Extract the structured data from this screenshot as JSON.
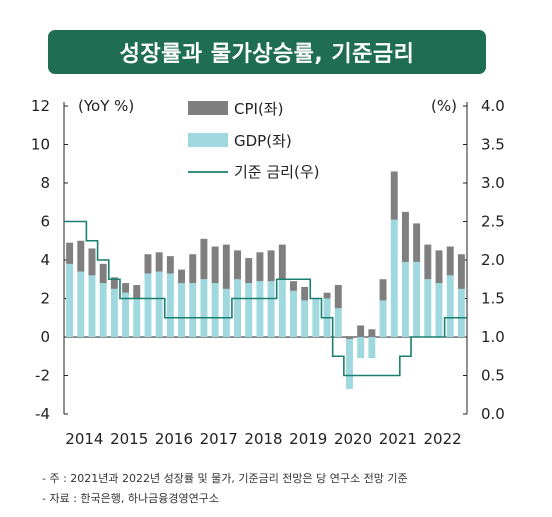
{
  "title": "성장률과 물가상승률, 기준금리",
  "notes": [
    "- 주 : 2021년과 2022년 성장률 및 물가, 기준금리 전망은 당 연구소 전망 기준",
    "- 자료 : 한국은행, 하나금융경영연구소"
  ],
  "colors": {
    "title_bg": "#1f6e54",
    "cpi": "#7f7f7f",
    "gdp": "#9fd8df",
    "rate": "#1a7f6e"
  },
  "chart_data": {
    "type": "bar",
    "left_unit": "(YoY %)",
    "right_unit": "(%)",
    "left_ylim": [
      -4,
      12
    ],
    "right_ylim": [
      0.0,
      4.0
    ],
    "left_ticks": [
      "-4",
      "-2",
      "0",
      "2",
      "4",
      "6",
      "8",
      "10",
      "12"
    ],
    "right_ticks": [
      "0.0",
      "0.5",
      "1.0",
      "1.5",
      "2.0",
      "2.5",
      "3.0",
      "3.5",
      "4.0"
    ],
    "x_labels": [
      "2014",
      "2015",
      "2016",
      "2017",
      "2018",
      "2019",
      "2020",
      "2021",
      "2022"
    ],
    "legend": [
      "CPI(좌)",
      "GDP(좌)",
      "기준 금리(우)"
    ],
    "quarters": [
      "2014Q1",
      "2014Q2",
      "2014Q3",
      "2014Q4",
      "2015Q1",
      "2015Q2",
      "2015Q3",
      "2015Q4",
      "2016Q1",
      "2016Q2",
      "2016Q3",
      "2016Q4",
      "2017Q1",
      "2017Q2",
      "2017Q3",
      "2017Q4",
      "2018Q1",
      "2018Q2",
      "2018Q3",
      "2018Q4",
      "2019Q1",
      "2019Q2",
      "2019Q3",
      "2019Q4",
      "2020Q1",
      "2020Q2",
      "2020Q3",
      "2020Q4",
      "2021Q1",
      "2021Q2",
      "2021Q3",
      "2021Q4",
      "2022Q1",
      "2022Q2",
      "2022Q3",
      "2022Q4"
    ],
    "series": [
      {
        "name": "GDP(좌)",
        "values": [
          3.8,
          3.4,
          3.2,
          2.8,
          2.5,
          2.3,
          2.0,
          3.3,
          3.4,
          3.3,
          2.8,
          2.8,
          3.0,
          2.8,
          2.5,
          3.0,
          2.8,
          2.9,
          2.9,
          3.0,
          2.4,
          1.9,
          2.0,
          2.0,
          1.5,
          -2.7,
          -1.1,
          -1.1,
          1.9,
          6.1,
          3.9,
          3.9,
          3.0,
          2.8,
          3.2,
          2.5
        ]
      },
      {
        "name": "CPI(좌)",
        "values": [
          1.1,
          1.6,
          1.4,
          1.0,
          0.6,
          0.5,
          0.7,
          1.0,
          1.0,
          0.9,
          0.7,
          1.5,
          2.1,
          1.9,
          2.3,
          1.5,
          1.3,
          1.5,
          1.6,
          1.8,
          0.5,
          0.7,
          0.0,
          0.3,
          1.2,
          -0.1,
          0.6,
          0.4,
          1.1,
          2.5,
          2.6,
          2.0,
          1.8,
          1.7,
          1.5,
          1.8
        ]
      }
    ],
    "rate": [
      2.5,
      2.5,
      2.25,
      2.0,
      1.75,
      1.5,
      1.5,
      1.5,
      1.5,
      1.25,
      1.25,
      1.25,
      1.25,
      1.25,
      1.25,
      1.5,
      1.5,
      1.5,
      1.5,
      1.75,
      1.75,
      1.75,
      1.5,
      1.25,
      0.75,
      0.5,
      0.5,
      0.5,
      0.5,
      0.5,
      0.75,
      1.0,
      1.0,
      1.0,
      1.25,
      1.25
    ]
  }
}
